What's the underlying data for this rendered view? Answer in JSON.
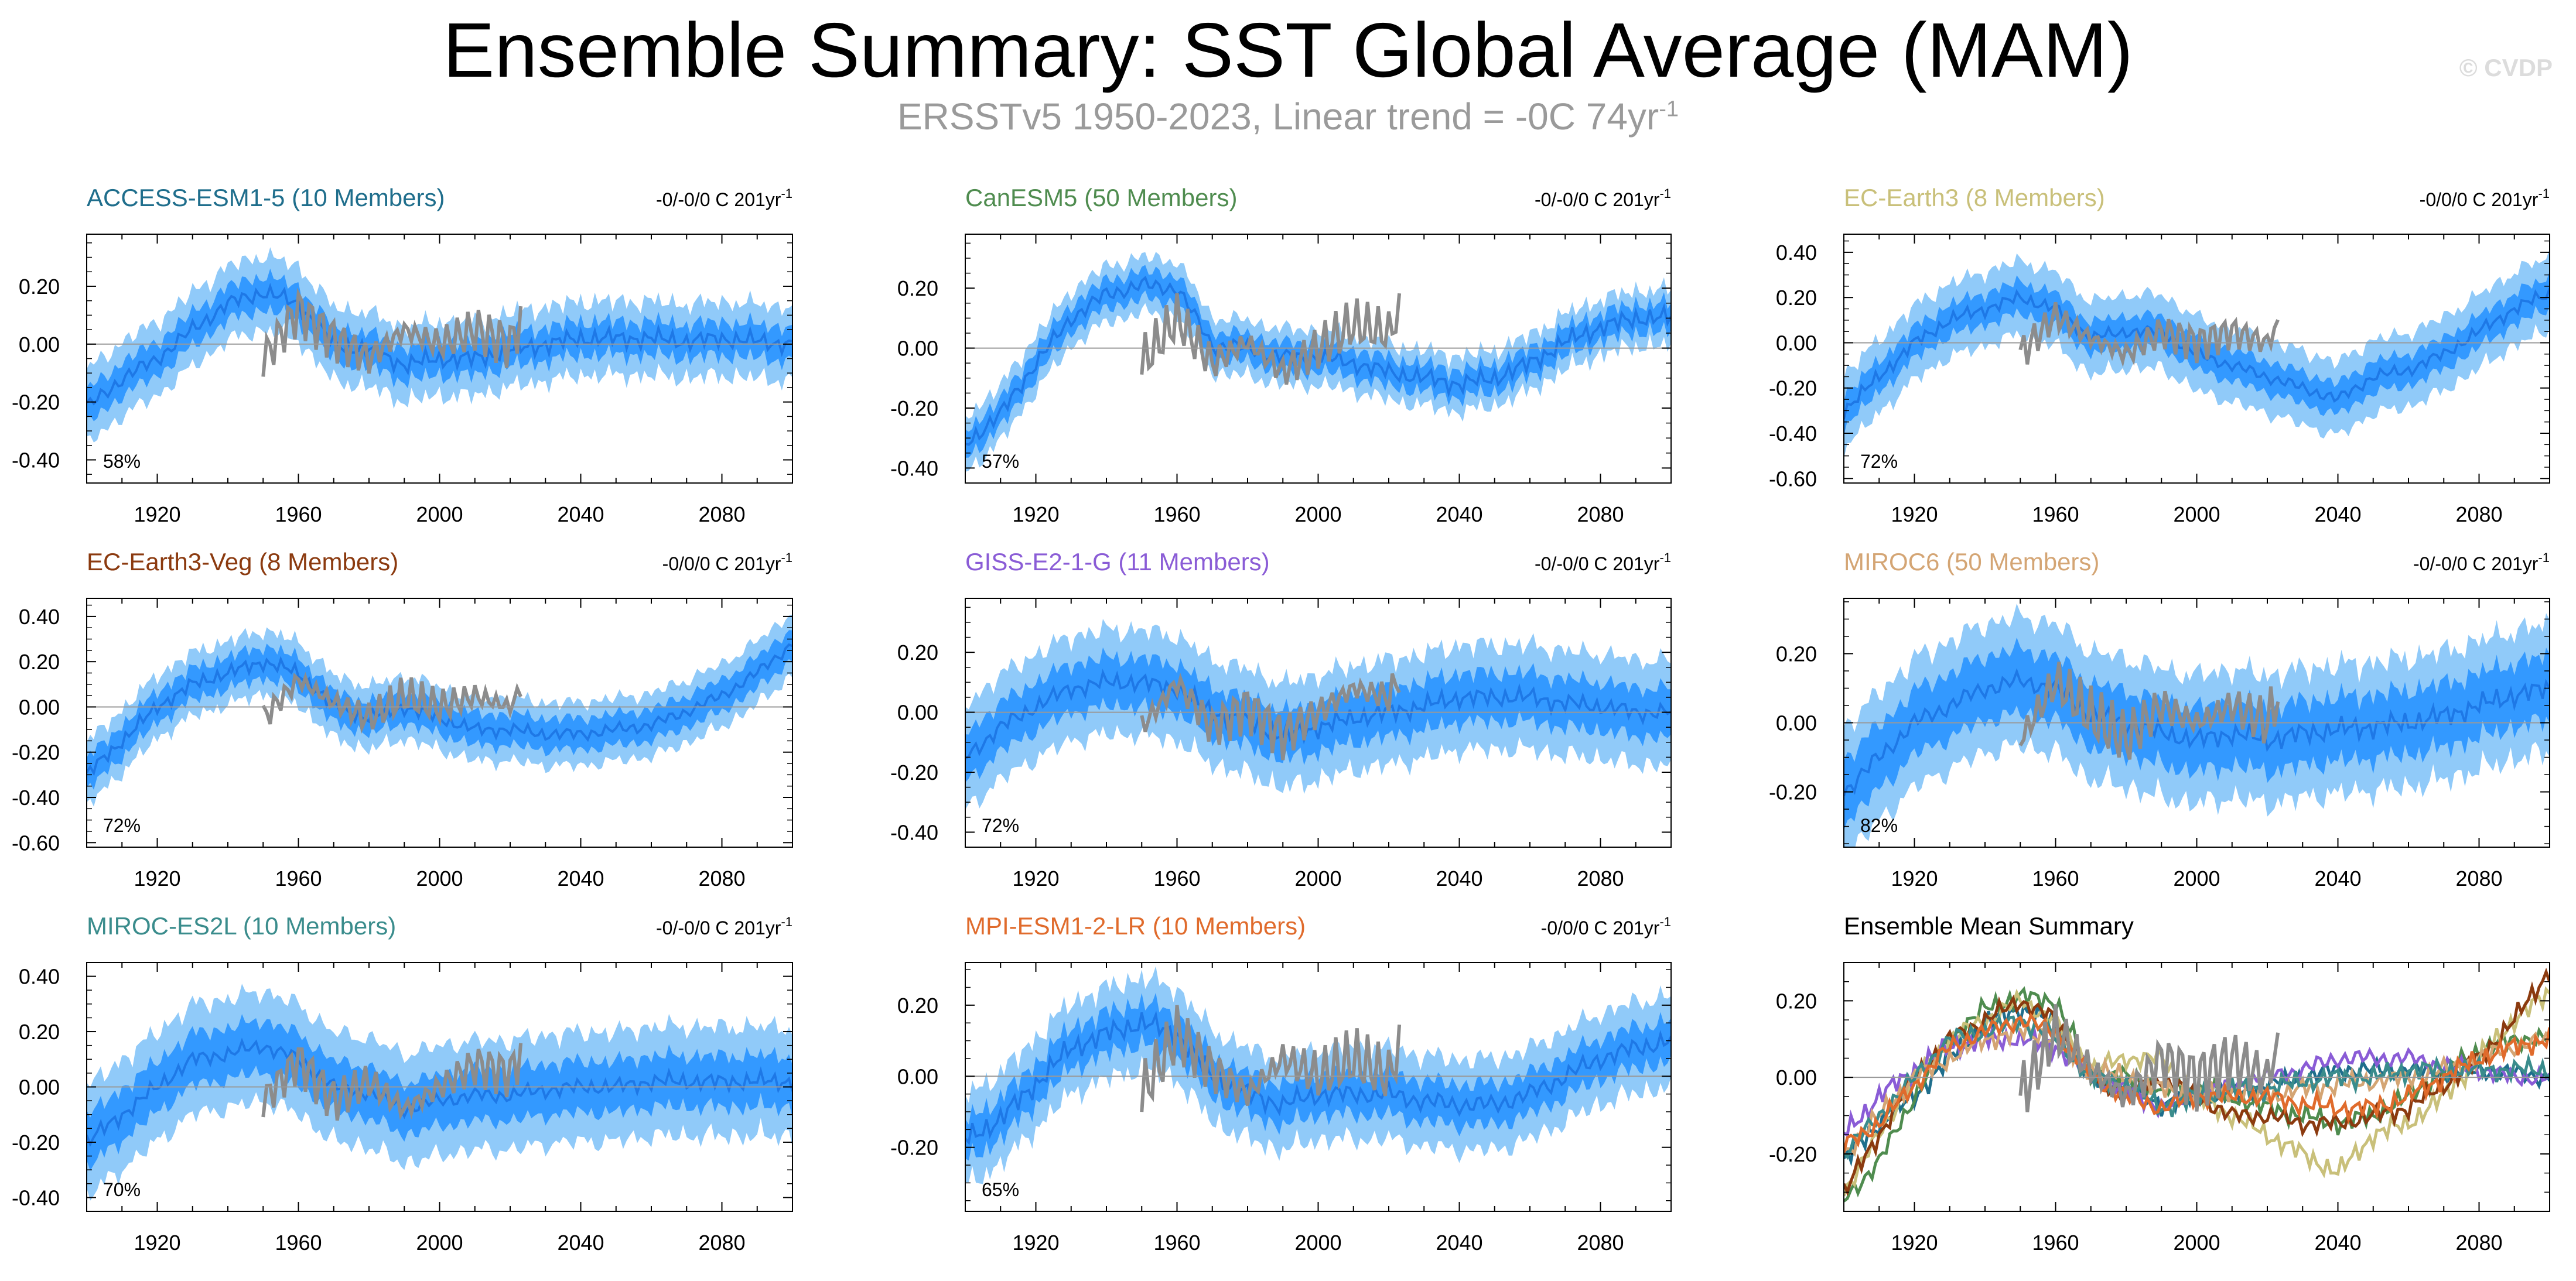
{
  "title": "Ensemble Summary: SST Global Average (MAM)",
  "subtitle_main": "ERSSTv5 1950-2023, Linear trend = -0C 74yr",
  "subtitle_sup": "-1",
  "watermark": "© CVDP",
  "colors": {
    "spread_outer": "#90caf9",
    "spread_inner": "#3399ff",
    "ensemble_mean": "#1e78e6",
    "observations": "#8c8c8c",
    "zero_line": "#999999",
    "axis": "#000000"
  },
  "chart_data": [
    {
      "type": "line",
      "title": "ACCESS-ESM1-5 (10 Members)",
      "title_color": "#1f6e8c",
      "trend_label": "-0/-0/0 C 201yr",
      "trend_sup": "-1",
      "percent_label": "58%",
      "xlim": [
        1900,
        2100
      ],
      "ylim": [
        -0.48,
        0.38
      ],
      "xticks": [
        1920,
        1960,
        2000,
        2040,
        2080
      ],
      "yticks": [
        -0.4,
        -0.2,
        0.0,
        0.2
      ],
      "ytick_labels": [
        "-0.40",
        "-0.20",
        "0.00",
        "0.20"
      ],
      "x": [
        1900,
        1910,
        1920,
        1930,
        1940,
        1950,
        1960,
        1970,
        1980,
        1990,
        2000,
        2010,
        2020,
        2030,
        2040,
        2050,
        2060,
        2070,
        2080,
        2090,
        2100
      ],
      "ensemble_mean": [
        -0.22,
        -0.12,
        -0.05,
        0.05,
        0.14,
        0.18,
        0.14,
        0.0,
        -0.02,
        -0.07,
        -0.05,
        -0.05,
        -0.02,
        0.0,
        0.02,
        0.02,
        0.02,
        0.01,
        0.02,
        0.01,
        0.0
      ],
      "spread_inner": 0.05,
      "spread_outer": 0.11,
      "obs_x": [
        1950,
        1960,
        1970,
        1980,
        1990,
        2000,
        2010,
        2020,
        2023
      ],
      "obs_y": [
        -0.05,
        0.12,
        0.02,
        -0.05,
        0.05,
        0.0,
        0.05,
        0.0,
        0.08
      ]
    },
    {
      "type": "line",
      "title": "CanESM5 (50 Members)",
      "title_color": "#4f8c4f",
      "trend_label": "-0/-0/0 C 201yr",
      "trend_sup": "-1",
      "percent_label": "57%",
      "xlim": [
        1900,
        2100
      ],
      "ylim": [
        -0.45,
        0.38
      ],
      "xticks": [
        1920,
        1960,
        2000,
        2040,
        2080
      ],
      "yticks": [
        -0.4,
        -0.2,
        0.0,
        0.2
      ],
      "ytick_labels": [
        "-0.40",
        "-0.20",
        "0.00",
        "0.20"
      ],
      "x": [
        1900,
        1910,
        1920,
        1930,
        1940,
        1950,
        1960,
        1970,
        1980,
        1990,
        2000,
        2010,
        2020,
        2030,
        2040,
        2050,
        2060,
        2070,
        2080,
        2090,
        2100
      ],
      "ensemble_mean": [
        -0.32,
        -0.22,
        -0.05,
        0.1,
        0.18,
        0.21,
        0.2,
        0.01,
        0.0,
        -0.03,
        -0.03,
        -0.05,
        -0.08,
        -0.1,
        -0.12,
        -0.1,
        -0.05,
        0.02,
        0.07,
        0.1,
        0.1
      ],
      "spread_inner": 0.04,
      "spread_outer": 0.08,
      "obs_x": [
        1950,
        1960,
        1970,
        1980,
        1990,
        2000,
        2010,
        2020,
        2023
      ],
      "obs_y": [
        -0.05,
        0.1,
        -0.05,
        0.02,
        -0.08,
        0.0,
        0.08,
        0.05,
        0.12
      ]
    },
    {
      "type": "line",
      "title": "EC-Earth3 (8 Members)",
      "title_color": "#c9c07a",
      "trend_label": "-0/0/0 C 201yr",
      "trend_sup": "-1",
      "percent_label": "72%",
      "xlim": [
        1900,
        2100
      ],
      "ylim": [
        -0.62,
        0.48
      ],
      "xticks": [
        1920,
        1960,
        2000,
        2040,
        2080
      ],
      "yticks": [
        -0.6,
        -0.4,
        -0.2,
        0.0,
        0.2,
        0.4
      ],
      "ytick_labels": [
        "-0.60",
        "-0.40",
        "-0.20",
        "0.00",
        "0.20",
        "0.40"
      ],
      "x": [
        1900,
        1910,
        1920,
        1930,
        1940,
        1950,
        1960,
        1970,
        1980,
        1990,
        2000,
        2010,
        2020,
        2030,
        2040,
        2050,
        2060,
        2070,
        2080,
        2090,
        2100
      ],
      "ensemble_mean": [
        -0.3,
        -0.15,
        0.0,
        0.1,
        0.15,
        0.2,
        0.15,
        0.02,
        0.05,
        0.05,
        -0.05,
        -0.1,
        -0.15,
        -0.2,
        -0.25,
        -0.15,
        -0.12,
        -0.05,
        0.05,
        0.15,
        0.22
      ],
      "spread_inner": 0.06,
      "spread_outer": 0.14,
      "obs_x": [
        1950,
        1960,
        1970,
        1980,
        1990,
        2000,
        2010,
        2020,
        2023
      ],
      "obs_y": [
        -0.05,
        0.12,
        0.02,
        -0.05,
        0.05,
        0.0,
        0.05,
        0.0,
        0.08
      ]
    },
    {
      "type": "line",
      "title": "EC-Earth3-Veg (8 Members)",
      "title_color": "#8b3a0f",
      "trend_label": "-0/0/0 C 201yr",
      "trend_sup": "-1",
      "percent_label": "72%",
      "xlim": [
        1900,
        2100
      ],
      "ylim": [
        -0.62,
        0.48
      ],
      "xticks": [
        1920,
        1960,
        2000,
        2040,
        2080
      ],
      "yticks": [
        -0.6,
        -0.4,
        -0.2,
        0.0,
        0.2,
        0.4
      ],
      "ytick_labels": [
        "-0.60",
        "-0.40",
        "-0.20",
        "0.00",
        "0.20",
        "0.40"
      ],
      "x": [
        1900,
        1910,
        1920,
        1930,
        1940,
        1950,
        1960,
        1970,
        1980,
        1990,
        2000,
        2010,
        2020,
        2030,
        2040,
        2050,
        2060,
        2070,
        2080,
        2090,
        2100
      ],
      "ensemble_mean": [
        -0.3,
        -0.15,
        0.0,
        0.1,
        0.15,
        0.2,
        0.15,
        0.0,
        -0.05,
        0.0,
        -0.05,
        -0.1,
        -0.1,
        -0.12,
        -0.12,
        -0.1,
        -0.08,
        -0.02,
        0.05,
        0.15,
        0.28
      ],
      "spread_inner": 0.06,
      "spread_outer": 0.12,
      "obs_x": [
        1950,
        1960,
        1970,
        1980,
        1990,
        2000,
        2010,
        2020,
        2023
      ],
      "obs_y": [
        -0.05,
        0.12,
        0.02,
        -0.05,
        0.05,
        0.0,
        0.05,
        0.0,
        0.08
      ]
    },
    {
      "type": "line",
      "title": "GISS-E2-1-G (11 Members)",
      "title_color": "#8a5cd6",
      "trend_label": "-0/-0/0 C 201yr",
      "trend_sup": "-1",
      "percent_label": "72%",
      "xlim": [
        1900,
        2100
      ],
      "ylim": [
        -0.45,
        0.38
      ],
      "xticks": [
        1920,
        1960,
        2000,
        2040,
        2080
      ],
      "yticks": [
        -0.4,
        -0.2,
        0.0,
        0.2
      ],
      "ytick_labels": [
        "-0.40",
        "-0.20",
        "0.00",
        "0.20"
      ],
      "x": [
        1900,
        1910,
        1920,
        1930,
        1940,
        1950,
        1960,
        1970,
        1980,
        1990,
        2000,
        2010,
        2020,
        2030,
        2040,
        2050,
        2060,
        2070,
        2080,
        2090,
        2100
      ],
      "ensemble_mean": [
        -0.15,
        -0.05,
        0.02,
        0.08,
        0.1,
        0.1,
        0.08,
        0.0,
        -0.03,
        -0.08,
        -0.05,
        -0.02,
        0.0,
        0.02,
        0.05,
        0.05,
        0.05,
        0.03,
        0.02,
        0.0,
        0.0
      ],
      "spread_inner": 0.07,
      "spread_outer": 0.15,
      "obs_x": [
        1950,
        1960,
        1970,
        1980,
        1990,
        2000,
        2010,
        2020,
        2023
      ],
      "obs_y": [
        -0.05,
        0.1,
        -0.05,
        0.02,
        -0.08,
        0.0,
        0.08,
        0.05,
        0.12
      ]
    },
    {
      "type": "line",
      "title": "MIROC6 (50 Members)",
      "title_color": "#d4a574",
      "trend_label": "-0/-0/0 C 201yr",
      "trend_sup": "-1",
      "percent_label": "82%",
      "xlim": [
        1900,
        2100
      ],
      "ylim": [
        -0.36,
        0.36
      ],
      "xticks": [
        1920,
        1960,
        2000,
        2040,
        2080
      ],
      "yticks": [
        -0.2,
        0.0,
        0.2
      ],
      "ytick_labels": [
        "-0.20",
        "0.00",
        "0.20"
      ],
      "x": [
        1900,
        1910,
        1920,
        1930,
        1940,
        1950,
        1960,
        1970,
        1980,
        1990,
        2000,
        2010,
        2020,
        2030,
        2040,
        2050,
        2060,
        2070,
        2080,
        2090,
        2100
      ],
      "ensemble_mean": [
        -0.2,
        -0.1,
        0.0,
        0.05,
        0.1,
        0.12,
        0.1,
        0.02,
        0.0,
        -0.03,
        -0.05,
        -0.03,
        -0.05,
        -0.03,
        -0.02,
        -0.01,
        0.0,
        0.02,
        0.05,
        0.08,
        0.1
      ],
      "spread_inner": 0.08,
      "spread_outer": 0.16,
      "obs_x": [
        1950,
        1960,
        1970,
        1980,
        1990,
        2000,
        2010,
        2020,
        2023
      ],
      "obs_y": [
        -0.05,
        0.12,
        0.02,
        -0.05,
        0.05,
        0.0,
        0.05,
        0.0,
        0.08
      ]
    },
    {
      "type": "line",
      "title": "MIROC-ES2L (10 Members)",
      "title_color": "#3a8c8c",
      "trend_label": "-0/-0/0 C 201yr",
      "trend_sup": "-1",
      "percent_label": "70%",
      "xlim": [
        1900,
        2100
      ],
      "ylim": [
        -0.45,
        0.45
      ],
      "xticks": [
        1920,
        1960,
        2000,
        2040,
        2080
      ],
      "yticks": [
        -0.4,
        -0.2,
        0.0,
        0.2,
        0.4
      ],
      "ytick_labels": [
        "-0.40",
        "-0.20",
        "0.00",
        "0.20",
        "0.40"
      ],
      "x": [
        1900,
        1910,
        1920,
        1930,
        1940,
        1950,
        1960,
        1970,
        1980,
        1990,
        2000,
        2010,
        2020,
        2030,
        2040,
        2050,
        2060,
        2070,
        2080,
        2090,
        2100
      ],
      "ensemble_mean": [
        -0.2,
        -0.1,
        0.0,
        0.1,
        0.12,
        0.15,
        0.1,
        0.0,
        -0.02,
        -0.08,
        -0.05,
        -0.03,
        -0.03,
        -0.01,
        0.0,
        0.0,
        0.02,
        0.02,
        0.02,
        0.02,
        0.02
      ],
      "spread_inner": 0.08,
      "spread_outer": 0.17,
      "obs_x": [
        1950,
        1960,
        1970,
        1980,
        1990,
        2000,
        2010,
        2020,
        2023
      ],
      "obs_y": [
        -0.05,
        0.1,
        -0.05,
        0.02,
        -0.08,
        0.0,
        0.08,
        0.05,
        0.12
      ]
    },
    {
      "type": "line",
      "title": "MPI-ESM1-2-LR (10 Members)",
      "title_color": "#e06b2c",
      "trend_label": "-0/0/0 C 201yr",
      "trend_sup": "-1",
      "percent_label": "65%",
      "xlim": [
        1900,
        2100
      ],
      "ylim": [
        -0.38,
        0.32
      ],
      "xticks": [
        1920,
        1960,
        2000,
        2040,
        2080
      ],
      "yticks": [
        -0.2,
        0.0,
        0.2
      ],
      "ytick_labels": [
        "-0.20",
        "0.00",
        "0.20"
      ],
      "x": [
        1900,
        1910,
        1920,
        1930,
        1940,
        1950,
        1960,
        1970,
        1980,
        1990,
        2000,
        2010,
        2020,
        2030,
        2040,
        2050,
        2060,
        2070,
        2080,
        2090,
        2100
      ],
      "ensemble_mean": [
        -0.18,
        -0.12,
        -0.02,
        0.08,
        0.12,
        0.15,
        0.12,
        0.0,
        -0.05,
        -0.08,
        -0.05,
        -0.05,
        -0.05,
        -0.07,
        -0.08,
        -0.08,
        -0.05,
        0.0,
        0.05,
        0.08,
        0.1
      ],
      "spread_inner": 0.05,
      "spread_outer": 0.11,
      "obs_x": [
        1950,
        1960,
        1970,
        1980,
        1990,
        2000,
        2010,
        2020,
        2023
      ],
      "obs_y": [
        -0.05,
        0.12,
        0.02,
        -0.05,
        0.05,
        0.0,
        0.05,
        0.0,
        0.08
      ]
    },
    {
      "type": "line",
      "title": "Ensemble Mean Summary",
      "title_color": "#000000",
      "xlim": [
        1900,
        2100
      ],
      "ylim": [
        -0.35,
        0.3
      ],
      "xticks": [
        1920,
        1960,
        2000,
        2040,
        2080
      ],
      "yticks": [
        -0.2,
        0.0,
        0.2
      ],
      "ytick_labels": [
        "-0.20",
        "0.00",
        "0.20"
      ],
      "x": [
        1900,
        1910,
        1920,
        1930,
        1940,
        1950,
        1960,
        1970,
        1980,
        1990,
        2000,
        2010,
        2020,
        2030,
        2040,
        2050,
        2060,
        2070,
        2080,
        2090,
        2100
      ],
      "series": [
        {
          "color": "#1f6e8c",
          "values": [
            -0.22,
            -0.12,
            -0.05,
            0.05,
            0.14,
            0.18,
            0.14,
            0.0,
            -0.02,
            -0.07,
            -0.05,
            -0.05,
            -0.02,
            0.0,
            0.02,
            0.02,
            0.02,
            0.01,
            0.02,
            0.01,
            0.0
          ]
        },
        {
          "color": "#4f8c4f",
          "values": [
            -0.32,
            -0.22,
            -0.05,
            0.1,
            0.18,
            0.21,
            0.2,
            0.01,
            0.0,
            -0.03,
            -0.03,
            -0.05,
            -0.08,
            -0.1,
            -0.12,
            -0.1,
            -0.05,
            0.02,
            0.07,
            0.1,
            0.1
          ]
        },
        {
          "color": "#c9c07a",
          "values": [
            -0.3,
            -0.15,
            0.0,
            0.1,
            0.15,
            0.2,
            0.15,
            0.02,
            0.05,
            0.05,
            -0.05,
            -0.1,
            -0.15,
            -0.2,
            -0.25,
            -0.15,
            -0.12,
            -0.05,
            0.05,
            0.15,
            0.22
          ]
        },
        {
          "color": "#8b3a0f",
          "values": [
            -0.3,
            -0.15,
            0.0,
            0.1,
            0.15,
            0.2,
            0.15,
            0.0,
            -0.05,
            0.0,
            -0.05,
            -0.1,
            -0.1,
            -0.12,
            -0.12,
            -0.1,
            -0.08,
            -0.02,
            0.05,
            0.15,
            0.28
          ]
        },
        {
          "color": "#8a5cd6",
          "values": [
            -0.15,
            -0.05,
            0.02,
            0.08,
            0.1,
            0.1,
            0.08,
            0.0,
            -0.03,
            -0.08,
            -0.05,
            -0.02,
            0.0,
            0.02,
            0.05,
            0.05,
            0.05,
            0.03,
            0.02,
            0.0,
            0.0
          ]
        },
        {
          "color": "#d4a574",
          "values": [
            -0.2,
            -0.1,
            0.0,
            0.05,
            0.1,
            0.12,
            0.1,
            0.02,
            0.0,
            -0.03,
            -0.05,
            -0.03,
            -0.05,
            -0.03,
            -0.02,
            -0.01,
            0.0,
            0.02,
            0.05,
            0.08,
            0.1
          ]
        },
        {
          "color": "#3a8c8c",
          "values": [
            -0.2,
            -0.1,
            0.0,
            0.1,
            0.12,
            0.15,
            0.1,
            0.0,
            -0.02,
            -0.08,
            -0.05,
            -0.03,
            -0.03,
            -0.01,
            0.0,
            0.0,
            0.02,
            0.02,
            0.02,
            0.02,
            0.02
          ]
        },
        {
          "color": "#e06b2c",
          "values": [
            -0.18,
            -0.12,
            -0.02,
            0.08,
            0.12,
            0.15,
            0.12,
            0.0,
            -0.05,
            -0.08,
            -0.05,
            -0.05,
            -0.05,
            -0.07,
            -0.08,
            -0.08,
            -0.05,
            0.0,
            0.05,
            0.08,
            0.1
          ]
        }
      ],
      "obs_x": [
        1950,
        1960,
        1970,
        1980,
        1990,
        2000,
        2010,
        2020,
        2023
      ],
      "obs_y": [
        -0.05,
        0.12,
        0.02,
        -0.05,
        0.05,
        0.0,
        0.05,
        0.0,
        0.08
      ]
    }
  ]
}
